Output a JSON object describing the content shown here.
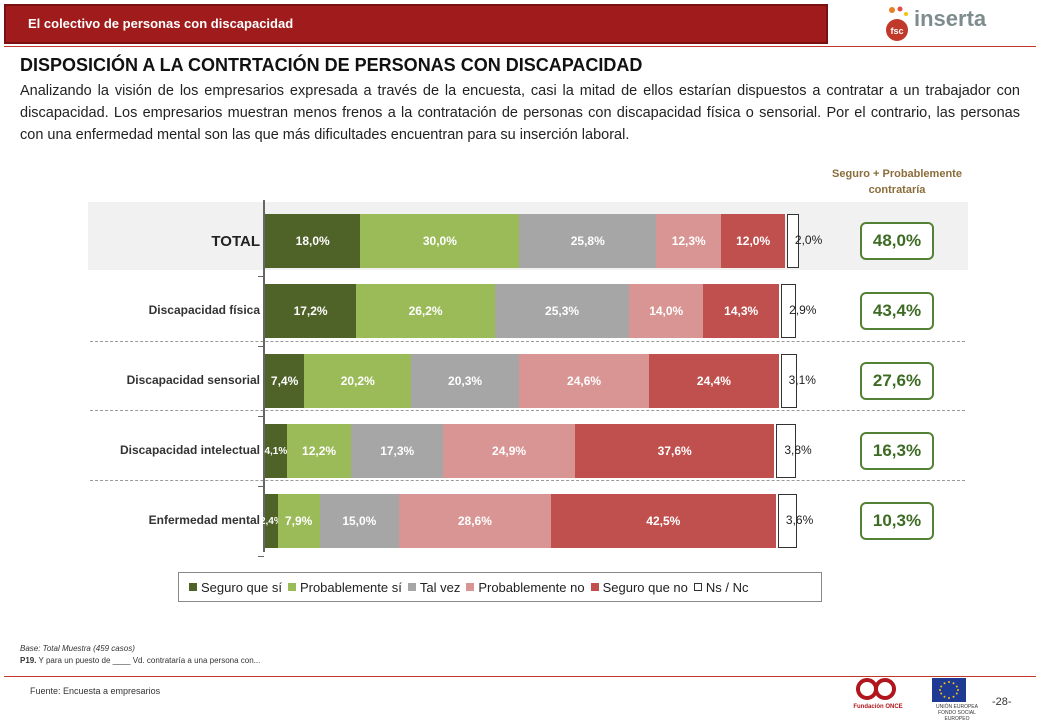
{
  "header": {
    "section_title": "El colectivo de personas con discapacidad"
  },
  "logos": {
    "inserta": "inserta",
    "fsc": "fsc",
    "fundacion_once": "Fundación ONCE",
    "union_europea": "UNIÓN EUROPEA FONDO SOCIAL EUROPEO"
  },
  "page": {
    "title": "DISPOSICIÓN A LA CONTRTACIÓN DE PERSONAS CON DISCAPACIDAD",
    "intro": "Analizando la visión de los empresarios expresada a través de la encuesta, casi la mitad de ellos estarían dispuestos a contratar a un trabajador con discapacidad. Los empresarios muestran menos frenos a la contratación de personas con discapacidad física o sensorial. Por el contrario, las personas con una enfermedad mental son las que más dificultades encuentran para su inserción laboral.",
    "summary_header": "Seguro + Probablemente contrataría"
  },
  "chart_data": {
    "type": "bar",
    "orientation": "horizontal",
    "stacked": true,
    "categories": [
      "TOTAL",
      "Discapacidad física",
      "Discapacidad sensorial",
      "Discapacidad intelectual",
      "Enfermedad mental"
    ],
    "series": [
      {
        "name": "Seguro que sí",
        "color": "#4f6228",
        "values": [
          18.0,
          17.2,
          7.4,
          4.1,
          2.4
        ],
        "labels": [
          "18,0%",
          "17,2%",
          "7,4%",
          "4,1%",
          "2,4%"
        ]
      },
      {
        "name": "Probablemente sí",
        "color": "#9bbb59",
        "values": [
          30.0,
          26.2,
          20.2,
          12.2,
          7.9
        ],
        "labels": [
          "30,0%",
          "26,2%",
          "20,2%",
          "12,2%",
          "7,9%"
        ]
      },
      {
        "name": "Tal vez",
        "color": "#a6a6a6",
        "values": [
          25.8,
          25.3,
          20.3,
          17.3,
          15.0
        ],
        "labels": [
          "25,8%",
          "25,3%",
          "20,3%",
          "17,3%",
          "15,0%"
        ]
      },
      {
        "name": "Probablemente no",
        "color": "#d99594",
        "values": [
          12.3,
          14.0,
          24.6,
          24.9,
          28.6
        ],
        "labels": [
          "12,3%",
          "14,0%",
          "24,6%",
          "24,9%",
          "28,6%"
        ]
      },
      {
        "name": "Seguro que no",
        "color": "#c0504d",
        "values": [
          12.0,
          14.3,
          24.4,
          37.6,
          42.5
        ],
        "labels": [
          "12,0%",
          "14,3%",
          "24,4%",
          "37,6%",
          "42,5%"
        ]
      },
      {
        "name": "Ns / Nc",
        "color": "#ffffff",
        "values": [
          2.0,
          2.9,
          3.1,
          3.8,
          3.6
        ],
        "labels": [
          "2,0%",
          "2,9%",
          "3,1%",
          "3,8%",
          "3,6%"
        ]
      }
    ],
    "summary": [
      "48,0%",
      "43,4%",
      "27,6%",
      "16,3%",
      "10,3%"
    ],
    "legend_position": "bottom"
  },
  "notes": {
    "base": "Base: Total Muestra (459 casos)",
    "question_num": "P19.",
    "question_text": "Y para un puesto de ____ Vd. contrataría a una persona con...",
    "source": "Fuente: Encuesta a empresarios",
    "page_number": "-28-"
  }
}
